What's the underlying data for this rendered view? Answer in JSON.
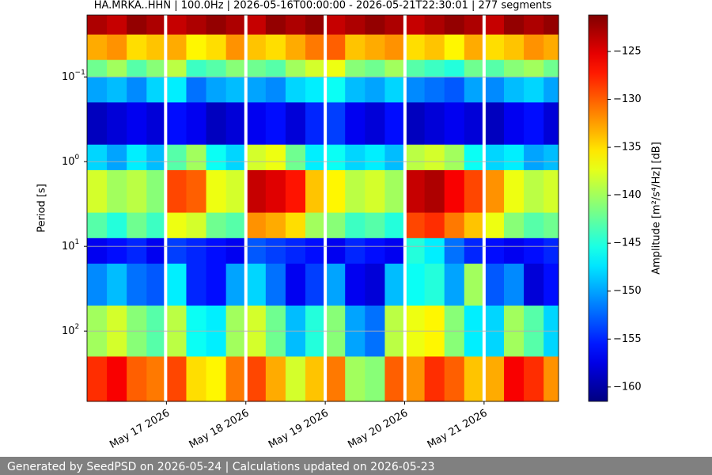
{
  "chart_data": {
    "type": "spectrogram",
    "title": "HA.MRKA..HHN | 100.0Hz | 2026-05-16T00:00:00 - 2026-05-21T22:30:01 | 277 segments",
    "y_label": "Period [s]",
    "colorbar_label": "Amplitude [m²/s⁴/Hz] [dB]",
    "xlim": [
      "2026-05-16T00:00:00",
      "2026-05-21T22:30:01"
    ],
    "xticks": [
      {
        "value": "2026-05-17T00:00:00",
        "label": "May 17 2026"
      },
      {
        "value": "2026-05-18T00:00:00",
        "label": "May 18 2026"
      },
      {
        "value": "2026-05-19T00:00:00",
        "label": "May 19 2026"
      },
      {
        "value": "2026-05-20T00:00:00",
        "label": "May 20 2026"
      },
      {
        "value": "2026-05-21T00:00:00",
        "label": "May 21 2026"
      }
    ],
    "ylim": [
      0.0186,
      676
    ],
    "y_log": true,
    "y_inverted": true,
    "yticks": [
      {
        "value": 0.1,
        "label": "10",
        "exponent": "−1"
      },
      {
        "value": 1,
        "label": "10",
        "exponent": "0"
      },
      {
        "value": 10,
        "label": "10",
        "exponent": "1"
      },
      {
        "value": 100,
        "label": "10",
        "exponent": "2"
      }
    ],
    "grid": true,
    "clim": [
      -161.5,
      -121.2
    ],
    "cticks": [
      {
        "value": -125,
        "label": "−125"
      },
      {
        "value": -130,
        "label": "−130"
      },
      {
        "value": -135,
        "label": "−135"
      },
      {
        "value": -140,
        "label": "−140"
      },
      {
        "value": -145,
        "label": "−145"
      },
      {
        "value": -150,
        "label": "−150"
      },
      {
        "value": -155,
        "label": "−155"
      },
      {
        "value": -160,
        "label": "−160"
      }
    ],
    "x": [
      "2026-05-16T00:00:00",
      "2026-05-16T06:00:00",
      "2026-05-16T12:00:00",
      "2026-05-16T18:00:00",
      "2026-05-17T00:00:00",
      "2026-05-17T06:00:00",
      "2026-05-17T12:00:00",
      "2026-05-17T18:00:00",
      "2026-05-18T00:00:00",
      "2026-05-18T06:00:00",
      "2026-05-18T12:00:00",
      "2026-05-18T18:00:00",
      "2026-05-19T00:00:00",
      "2026-05-19T06:00:00",
      "2026-05-19T12:00:00",
      "2026-05-19T18:00:00",
      "2026-05-20T00:00:00",
      "2026-05-20T06:00:00",
      "2026-05-20T12:00:00",
      "2026-05-20T18:00:00",
      "2026-05-21T00:00:00",
      "2026-05-21T06:00:00",
      "2026-05-21T12:00:00",
      "2026-05-21T18:00:00"
    ],
    "y_edges": [
      0.0186,
      0.0316,
      0.063,
      0.1,
      0.2,
      0.63,
      1.26,
      4,
      8,
      16,
      50,
      200,
      676
    ],
    "values": [
      [
        -123,
        -124,
        -122,
        -123,
        -124,
        -123,
        -122,
        -123,
        -124,
        -122,
        -123,
        -122,
        -124,
        -123,
        -122,
        -123,
        -124,
        -123,
        -122,
        -123,
        -124,
        -122,
        -123,
        -122
      ],
      [
        -133,
        -132,
        -135,
        -134,
        -133,
        -136,
        -135,
        -132,
        -134,
        -135,
        -133,
        -131,
        -130,
        -134,
        -133,
        -132,
        -135,
        -134,
        -136,
        -133,
        -135,
        -134,
        -132,
        -133
      ],
      [
        -142,
        -140,
        -143,
        -141,
        -139,
        -144,
        -143,
        -141,
        -142,
        -143,
        -140,
        -138,
        -137,
        -141,
        -142,
        -140,
        -143,
        -144,
        -145,
        -142,
        -143,
        -141,
        -140,
        -142
      ],
      [
        -150,
        -149,
        -151,
        -148,
        -147,
        -152,
        -150,
        -149,
        -150,
        -151,
        -148,
        -147,
        -146,
        -149,
        -150,
        -148,
        -151,
        -152,
        -153,
        -150,
        -151,
        -149,
        -148,
        -150
      ],
      [
        -159,
        -158,
        -157,
        -158,
        -156,
        -157,
        -159,
        -158,
        -157,
        -156,
        -158,
        -155,
        -154,
        -157,
        -158,
        -156,
        -159,
        -158,
        -157,
        -158,
        -159,
        -157,
        -156,
        -158
      ],
      [
        -148,
        -150,
        -147,
        -149,
        -143,
        -140,
        -146,
        -148,
        -138,
        -137,
        -142,
        -147,
        -146,
        -148,
        -147,
        -149,
        -139,
        -138,
        -140,
        -146,
        -148,
        -147,
        -150,
        -149
      ],
      [
        -138,
        -140,
        -139,
        -141,
        -129,
        -130,
        -137,
        -138,
        -124,
        -125,
        -127,
        -134,
        -136,
        -139,
        -138,
        -140,
        -124,
        -123,
        -126,
        -129,
        -132,
        -137,
        -139,
        -138
      ],
      [
        -143,
        -145,
        -142,
        -144,
        -137,
        -138,
        -142,
        -143,
        -132,
        -133,
        -135,
        -140,
        -141,
        -144,
        -143,
        -145,
        -129,
        -128,
        -131,
        -134,
        -137,
        -141,
        -143,
        -142
      ],
      [
        -157,
        -156,
        -155,
        -157,
        -154,
        -155,
        -156,
        -157,
        -153,
        -154,
        -155,
        -156,
        -157,
        -155,
        -156,
        -157,
        -145,
        -147,
        -152,
        -155,
        -156,
        -157,
        -156,
        -155
      ],
      [
        -151,
        -149,
        -152,
        -153,
        -147,
        -155,
        -156,
        -150,
        -148,
        -152,
        -157,
        -154,
        -150,
        -157,
        -158,
        -149,
        -146,
        -145,
        -150,
        -140,
        -153,
        -151,
        -158,
        -156
      ],
      [
        -140,
        -138,
        -141,
        -143,
        -139,
        -146,
        -147,
        -140,
        -138,
        -142,
        -149,
        -145,
        -141,
        -150,
        -152,
        -139,
        -137,
        -136,
        -141,
        -147,
        -148,
        -140,
        -143,
        -148
      ],
      [
        -128,
        -126,
        -130,
        -131,
        -129,
        -135,
        -136,
        -131,
        -129,
        -133,
        -138,
        -134,
        -131,
        -140,
        -141,
        -130,
        -132,
        -128,
        -130,
        -134,
        -133,
        -126,
        -128,
        -132
      ]
    ],
    "gaps": [
      "2026-05-16T23:45:00",
      "2026-05-18T00:00:00",
      "2026-05-19T00:00:00",
      "2026-05-20T00:05:00",
      "2026-05-21T00:00:00"
    ],
    "footer": "Generated by SeedPSD on 2026-05-24 | Calculations updated on 2026-05-23"
  }
}
